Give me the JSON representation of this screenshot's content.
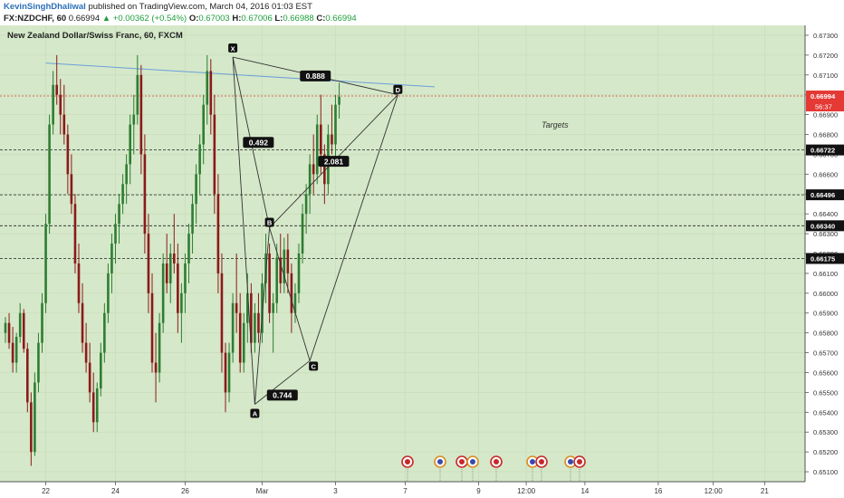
{
  "header": {
    "author": "KevinSinghDhaliwal",
    "published": "published on TradingView.com, March 04, 2016 01:03 EST",
    "symbol": "FX:NZDCHF, 60",
    "last": "0.66994",
    "arrow": "▲",
    "change": "+0.00362 (+0.54%)",
    "o_label": "O:",
    "o": "0.67003",
    "h_label": "H:",
    "h": "0.67006",
    "l_label": "L:",
    "l": "0.66988",
    "c_label": "C:",
    "c": "0.66994"
  },
  "chart_data": {
    "type": "candlestick",
    "title": "New Zealand Dollar/Swiss Franc, 60, FXCM",
    "y_range": [
      0.6505,
      0.6735
    ],
    "y_ticks": [
      0.651,
      0.652,
      0.653,
      0.654,
      0.655,
      0.656,
      0.657,
      0.658,
      0.659,
      0.66,
      0.661,
      0.662,
      0.663,
      0.664,
      0.665,
      0.666,
      0.667,
      0.668,
      0.669,
      0.67,
      0.671,
      0.672,
      0.673
    ],
    "y_tick_labels": [
      "0.65100",
      "0.65200",
      "0.65300",
      "0.65400",
      "0.65500",
      "0.65600",
      "0.65700",
      "0.65800",
      "0.65900",
      "0.66000",
      "0.66100",
      "0.66200",
      "0.66300",
      "0.66400",
      "0.66500",
      "0.66600",
      "0.66700",
      "0.66800",
      "0.66900",
      "0.67000",
      "0.67100",
      "0.67200",
      "0.67300"
    ],
    "x_ticks": [
      {
        "label": "22",
        "bar": 11
      },
      {
        "label": "24",
        "bar": 30
      },
      {
        "label": "26",
        "bar": 49
      },
      {
        "label": "Mar",
        "bar": 70
      },
      {
        "label": "3",
        "bar": 90
      },
      {
        "label": "7",
        "bar": 109
      },
      {
        "label": "9",
        "bar": 129
      },
      {
        "label": "12:00",
        "bar": 142
      },
      {
        "label": "14",
        "bar": 158
      },
      {
        "label": "16",
        "bar": 178
      },
      {
        "label": "12:00",
        "bar": 193
      },
      {
        "label": "21",
        "bar": 207
      }
    ],
    "colors": {
      "up": "#2e7d32",
      "down": "#8b1a1a",
      "background": "#d5e8c9",
      "price_line": "#e53935",
      "trend_line": "#6a9fd8",
      "pattern": "#333333"
    },
    "candles": [
      [
        0.658,
        0.6588,
        0.6575,
        0.6585
      ],
      [
        0.6585,
        0.659,
        0.6572,
        0.6575
      ],
      [
        0.6575,
        0.6583,
        0.656,
        0.6565
      ],
      [
        0.6565,
        0.658,
        0.656,
        0.6578
      ],
      [
        0.6578,
        0.6595,
        0.6575,
        0.659
      ],
      [
        0.659,
        0.6592,
        0.657,
        0.6572
      ],
      [
        0.6572,
        0.6575,
        0.654,
        0.6545
      ],
      [
        0.6545,
        0.655,
        0.6513,
        0.652
      ],
      [
        0.652,
        0.656,
        0.6518,
        0.6555
      ],
      [
        0.6555,
        0.658,
        0.655,
        0.6575
      ],
      [
        0.6575,
        0.66,
        0.657,
        0.6595
      ],
      [
        0.6595,
        0.664,
        0.659,
        0.6635
      ],
      [
        0.6635,
        0.669,
        0.663,
        0.6685
      ],
      [
        0.6685,
        0.6712,
        0.668,
        0.6705
      ],
      [
        0.6705,
        0.672,
        0.6695,
        0.67
      ],
      [
        0.67,
        0.6708,
        0.668,
        0.669
      ],
      [
        0.669,
        0.6705,
        0.6675,
        0.668
      ],
      [
        0.668,
        0.6685,
        0.665,
        0.666
      ],
      [
        0.666,
        0.667,
        0.664,
        0.6645
      ],
      [
        0.6645,
        0.665,
        0.661,
        0.6615
      ],
      [
        0.6615,
        0.6625,
        0.659,
        0.6595
      ],
      [
        0.6595,
        0.6605,
        0.657,
        0.6575
      ],
      [
        0.6575,
        0.6585,
        0.656,
        0.6565
      ],
      [
        0.6565,
        0.6575,
        0.6545,
        0.655
      ],
      [
        0.655,
        0.656,
        0.653,
        0.6535
      ],
      [
        0.6535,
        0.6555,
        0.653,
        0.6552
      ],
      [
        0.6552,
        0.6575,
        0.6548,
        0.657
      ],
      [
        0.657,
        0.6595,
        0.6565,
        0.659
      ],
      [
        0.659,
        0.6615,
        0.6585,
        0.661
      ],
      [
        0.661,
        0.663,
        0.66,
        0.6625
      ],
      [
        0.6625,
        0.664,
        0.6615,
        0.6635
      ],
      [
        0.6635,
        0.665,
        0.6625,
        0.6645
      ],
      [
        0.6645,
        0.666,
        0.664,
        0.6655
      ],
      [
        0.6655,
        0.667,
        0.6645,
        0.6665
      ],
      [
        0.6665,
        0.669,
        0.6655,
        0.6685
      ],
      [
        0.6685,
        0.67,
        0.667,
        0.669
      ],
      [
        0.669,
        0.672,
        0.6685,
        0.671
      ],
      [
        0.671,
        0.6715,
        0.666,
        0.667
      ],
      [
        0.667,
        0.668,
        0.662,
        0.663
      ],
      [
        0.663,
        0.664,
        0.659,
        0.66
      ],
      [
        0.66,
        0.661,
        0.656,
        0.6565
      ],
      [
        0.6565,
        0.658,
        0.6545,
        0.656
      ],
      [
        0.656,
        0.659,
        0.6555,
        0.6585
      ],
      [
        0.6585,
        0.662,
        0.658,
        0.6615
      ],
      [
        0.6615,
        0.663,
        0.66,
        0.6605
      ],
      [
        0.6605,
        0.6625,
        0.6595,
        0.662
      ],
      [
        0.662,
        0.664,
        0.661,
        0.6615
      ],
      [
        0.6615,
        0.6625,
        0.658,
        0.659
      ],
      [
        0.659,
        0.6605,
        0.6575,
        0.66
      ],
      [
        0.66,
        0.662,
        0.659,
        0.6615
      ],
      [
        0.6615,
        0.6635,
        0.6605,
        0.663
      ],
      [
        0.663,
        0.665,
        0.662,
        0.6645
      ],
      [
        0.6645,
        0.6665,
        0.6635,
        0.666
      ],
      [
        0.666,
        0.668,
        0.665,
        0.6675
      ],
      [
        0.6675,
        0.67,
        0.6665,
        0.6695
      ],
      [
        0.6695,
        0.672,
        0.6685,
        0.6712
      ],
      [
        0.6712,
        0.6718,
        0.668,
        0.669
      ],
      [
        0.669,
        0.67,
        0.664,
        0.665
      ],
      [
        0.665,
        0.666,
        0.66,
        0.661
      ],
      [
        0.661,
        0.662,
        0.656,
        0.657
      ],
      [
        0.657,
        0.6575,
        0.654,
        0.655
      ],
      [
        0.655,
        0.6575,
        0.6545,
        0.657
      ],
      [
        0.657,
        0.66,
        0.6565,
        0.6595
      ],
      [
        0.6595,
        0.662,
        0.658,
        0.659
      ],
      [
        0.659,
        0.66,
        0.656,
        0.6565
      ],
      [
        0.6565,
        0.659,
        0.656,
        0.6585
      ],
      [
        0.6585,
        0.661,
        0.6575,
        0.66
      ],
      [
        0.66,
        0.6605,
        0.657,
        0.6575
      ],
      [
        0.6575,
        0.6595,
        0.657,
        0.659
      ],
      [
        0.659,
        0.66,
        0.6575,
        0.658
      ],
      [
        0.658,
        0.661,
        0.6575,
        0.6605
      ],
      [
        0.6605,
        0.663,
        0.6595,
        0.662
      ],
      [
        0.662,
        0.6625,
        0.6585,
        0.659
      ],
      [
        0.659,
        0.66,
        0.657,
        0.6595
      ],
      [
        0.6595,
        0.6625,
        0.659,
        0.6618
      ],
      [
        0.6618,
        0.663,
        0.66,
        0.6605
      ],
      [
        0.6605,
        0.6628,
        0.66,
        0.6622
      ],
      [
        0.6622,
        0.663,
        0.66,
        0.661
      ],
      [
        0.661,
        0.6615,
        0.658,
        0.659
      ],
      [
        0.659,
        0.6605,
        0.6585,
        0.66
      ],
      [
        0.66,
        0.6625,
        0.6595,
        0.662
      ],
      [
        0.662,
        0.6645,
        0.6615,
        0.664
      ],
      [
        0.664,
        0.6655,
        0.663,
        0.665
      ],
      [
        0.665,
        0.667,
        0.664,
        0.6665
      ],
      [
        0.6665,
        0.668,
        0.665,
        0.666
      ],
      [
        0.666,
        0.669,
        0.6655,
        0.6685
      ],
      [
        0.6685,
        0.67,
        0.666,
        0.667
      ],
      [
        0.667,
        0.6675,
        0.6645,
        0.6655
      ],
      [
        0.6655,
        0.6685,
        0.665,
        0.668
      ],
      [
        0.668,
        0.6695,
        0.667,
        0.6675
      ],
      [
        0.6675,
        0.67,
        0.6665,
        0.6695
      ],
      [
        0.6695,
        0.6706,
        0.6688,
        0.6699
      ]
    ],
    "price_line": 0.66994,
    "horizontal_levels": [
      0.66722,
      0.66496,
      0.6634,
      0.66175
    ],
    "level_labels": [
      "0.66722",
      "0.66496",
      "0.66340",
      "0.66175"
    ],
    "last_price_label": "0.66994",
    "countdown_label": "56:37",
    "annotation": "Targets",
    "pattern": {
      "points": [
        {
          "label": "X",
          "bar": 62,
          "price": 0.6719
        },
        {
          "label": "A",
          "bar": 68,
          "price": 0.6544
        },
        {
          "label": "B",
          "bar": 72,
          "price": 0.6633
        },
        {
          "label": "C",
          "bar": 83,
          "price": 0.6566
        },
        {
          "label": "D",
          "bar": 107,
          "price": 0.67
        }
      ],
      "ratios": [
        {
          "label": "0.888",
          "from": "X",
          "to": "D"
        },
        {
          "label": "0.492",
          "from": "X",
          "to": "B"
        },
        {
          "label": "2.081",
          "from": "B",
          "to": "D"
        },
        {
          "label": "0.744",
          "from": "A",
          "to": "C"
        }
      ]
    },
    "trend_line": {
      "from": {
        "bar": 11,
        "price": 0.6716
      },
      "to": {
        "bar": 117,
        "price": 0.6704
      }
    },
    "event_markers": 9
  }
}
